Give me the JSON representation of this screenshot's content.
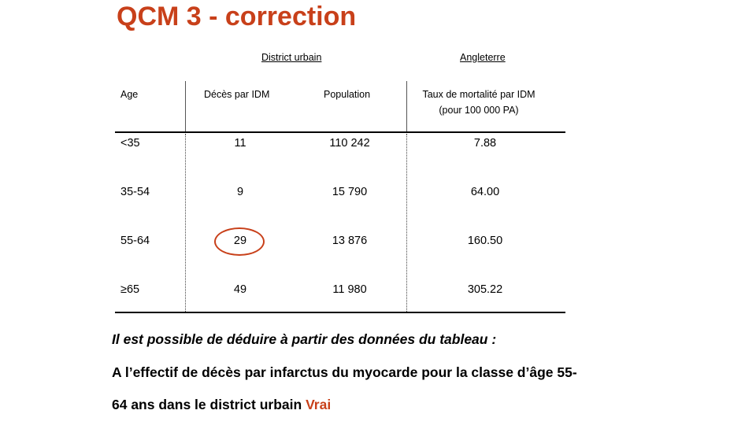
{
  "title": "QCM 3 - correction",
  "group_headers": {
    "district": "District urbain",
    "angleterre": "Angleterre"
  },
  "columns": {
    "age": "Age",
    "deaths": "Décès par IDM",
    "population": "Population",
    "rate_line1": "Taux de mortalité par IDM",
    "rate_line2": "(pour 100 000 PA)"
  },
  "rows": [
    {
      "age": "<35",
      "deaths": "11",
      "population": "110 242",
      "rate": "7.88"
    },
    {
      "age": "35-54",
      "deaths": "9",
      "population": "15 790",
      "rate": "64.00"
    },
    {
      "age": "55-64",
      "deaths": "29",
      "population": "13 876",
      "rate": "160.50"
    },
    {
      "age": "≥65",
      "deaths": "49",
      "population": "11 980",
      "rate": "305.22"
    }
  ],
  "question": "Il est possible de déduire à partir des données du tableau :",
  "statement_line1": "A l’effectif de décès par infarctus du myocarde pour la classe d’âge 55-",
  "statement_line2": "64 ans dans le district urbain",
  "answer": "Vrai",
  "colors": {
    "accent": "#c8401a"
  }
}
